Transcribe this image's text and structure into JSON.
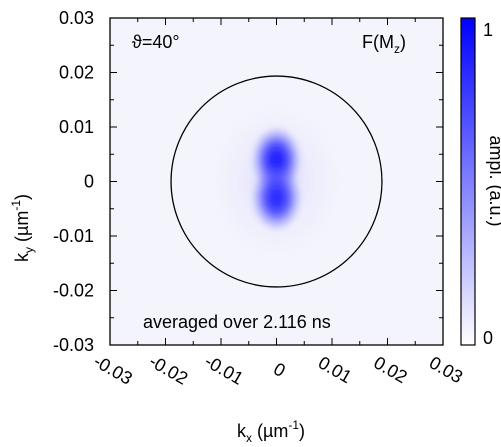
{
  "chart_data": {
    "type": "heatmap",
    "title": "",
    "annotation_left": "ϑ=40°",
    "annotation_right": {
      "main": "F(M",
      "sub": "z",
      "close": ")"
    },
    "caption": "averaged over 2.116 ns",
    "xlabel": {
      "main": "k",
      "sub": "x",
      "unit_pre": " (µm",
      "sup": "-1",
      "unit_post": ")"
    },
    "ylabel": {
      "main": "k",
      "sub": "y",
      "unit_pre": " (µm",
      "sup": "-1",
      "unit_post": ")"
    },
    "xlim": [
      -0.03,
      0.03
    ],
    "ylim": [
      -0.03,
      0.03
    ],
    "xticks": [
      -0.03,
      -0.02,
      -0.01,
      0,
      0.01,
      0.02,
      0.03
    ],
    "yticks": [
      -0.03,
      -0.02,
      -0.01,
      0,
      0.01,
      0.02,
      0.03
    ],
    "xtick_labels": [
      "-0.03",
      "-0.02",
      "-0.01",
      "0",
      "0.01",
      "0.02",
      "0.03"
    ],
    "ytick_labels": [
      "-0.03",
      "-0.02",
      "-0.01",
      "0",
      "0.01",
      "0.02",
      "0.03"
    ],
    "circle_radius": 0.019,
    "colorbar": {
      "label": "ampl. (a.u.)",
      "min_label": "0",
      "max_label": "1",
      "low_color": "#ffffff",
      "high_color": "#0000ff"
    },
    "intensity_features": [
      {
        "name": "upper-lobe",
        "kx": 0.0,
        "ky": 0.004,
        "amplitude": 1.0
      },
      {
        "name": "lower-lobe",
        "kx": 0.0,
        "ky": -0.003,
        "amplitude": 0.95
      },
      {
        "name": "diffuse-halo",
        "kx": 0.0,
        "ky": 0.0,
        "amplitude": 0.3
      }
    ]
  }
}
